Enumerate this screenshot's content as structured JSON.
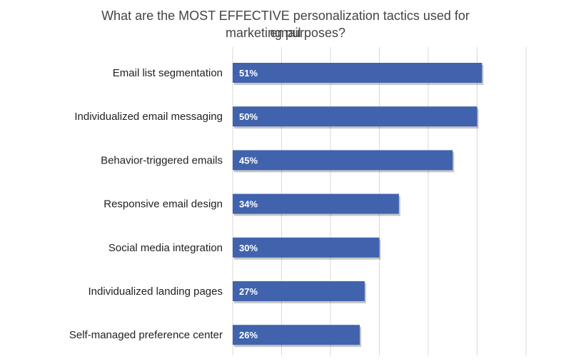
{
  "chart_data": {
    "type": "bar",
    "orientation": "horizontal",
    "title_lines": [
      "What are the MOST EFFECTIVE personalization tactics used for email",
      "marketing purposes?"
    ],
    "categories": [
      "Email list segmentation",
      "Individualized email messaging",
      "Behavior-triggered emails",
      "Responsive email design",
      "Social media integration",
      "Individualized landing pages",
      "Self-managed preference center"
    ],
    "values": [
      51,
      50,
      45,
      34,
      30,
      27,
      26
    ],
    "data_labels": [
      "51%",
      "50%",
      "45%",
      "34%",
      "30%",
      "27%",
      "26%"
    ],
    "xlim": [
      0,
      60
    ],
    "grid_step": 10,
    "grid": true,
    "bar_color": "#4163ad",
    "label_color": "#ffffff",
    "text_color": "#222222",
    "title_color": "#444444",
    "grid_color": "#d9d9d9"
  }
}
